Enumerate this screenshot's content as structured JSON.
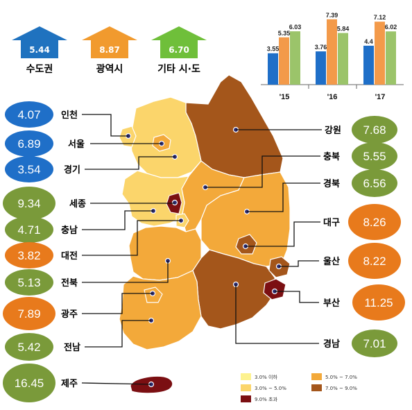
{
  "colors": {
    "lt3": "#fdf28f",
    "r3to5": "#fbd56b",
    "r5to7": "#f3a93a",
    "r7to9": "#a4561b",
    "gt9": "#7b0f12",
    "blue": "#1f6fc8",
    "orange": "#e87a1c",
    "green": "#7a9a3a"
  },
  "summary": [
    {
      "label": "수도권",
      "value": "5.44",
      "color": "#1f72bf"
    },
    {
      "label": "광역시",
      "value": "8.87",
      "color": "#f19a2e"
    },
    {
      "label": "기타 시·도",
      "value": "6.70",
      "color": "#6fbf3a"
    }
  ],
  "chart_data": {
    "type": "bar",
    "categories": [
      "'15",
      "'16",
      "'17"
    ],
    "series": [
      {
        "values": [
          3.55,
          3.76,
          4.4
        ],
        "color": "#1f6fc8"
      },
      {
        "values": [
          5.35,
          7.39,
          7.12
        ],
        "color": "#f39a4a"
      },
      {
        "values": [
          6.03,
          5.84,
          6.02
        ],
        "color": "#9bc46a"
      }
    ],
    "value_labels": [
      [
        "3.55",
        "5.35",
        "6.03"
      ],
      [
        "3.76",
        "7.39",
        "5.84"
      ],
      [
        "4.4",
        "7.12",
        "6.02"
      ]
    ],
    "ylim": [
      0,
      8
    ]
  },
  "regions_left": [
    {
      "name": "인천",
      "value": "4.07",
      "color": "blue"
    },
    {
      "name": "서울",
      "value": "6.89",
      "color": "blue"
    },
    {
      "name": "경기",
      "value": "3.54",
      "color": "blue"
    },
    {
      "name": "세종",
      "value": "9.34",
      "color": "green"
    },
    {
      "name": "충남",
      "value": "4.71",
      "color": "green"
    },
    {
      "name": "대전",
      "value": "3.82",
      "color": "orange"
    },
    {
      "name": "전북",
      "value": "5.13",
      "color": "green"
    },
    {
      "name": "광주",
      "value": "7.89",
      "color": "orange"
    },
    {
      "name": "전남",
      "value": "5.42",
      "color": "green"
    },
    {
      "name": "제주",
      "value": "16.45",
      "color": "green"
    }
  ],
  "regions_right": [
    {
      "name": "강원",
      "value": "7.68",
      "color": "green"
    },
    {
      "name": "충북",
      "value": "5.55",
      "color": "green"
    },
    {
      "name": "경북",
      "value": "6.56",
      "color": "green"
    },
    {
      "name": "대구",
      "value": "8.26",
      "color": "orange"
    },
    {
      "name": "울산",
      "value": "8.22",
      "color": "orange"
    },
    {
      "name": "부산",
      "value": "11.25",
      "color": "orange"
    },
    {
      "name": "경남",
      "value": "7.01",
      "color": "green"
    }
  ],
  "legend": [
    {
      "label": "3.0% 이하",
      "key": "lt3"
    },
    {
      "label": "3.0% ~ 5.0%",
      "key": "r3to5"
    },
    {
      "label": "9.0% 초과",
      "key": "gt9"
    },
    {
      "label": "5.0% ~ 7.0%",
      "key": "r5to7"
    },
    {
      "label": "7.0% ~ 9.0%",
      "key": "r7to9"
    }
  ]
}
